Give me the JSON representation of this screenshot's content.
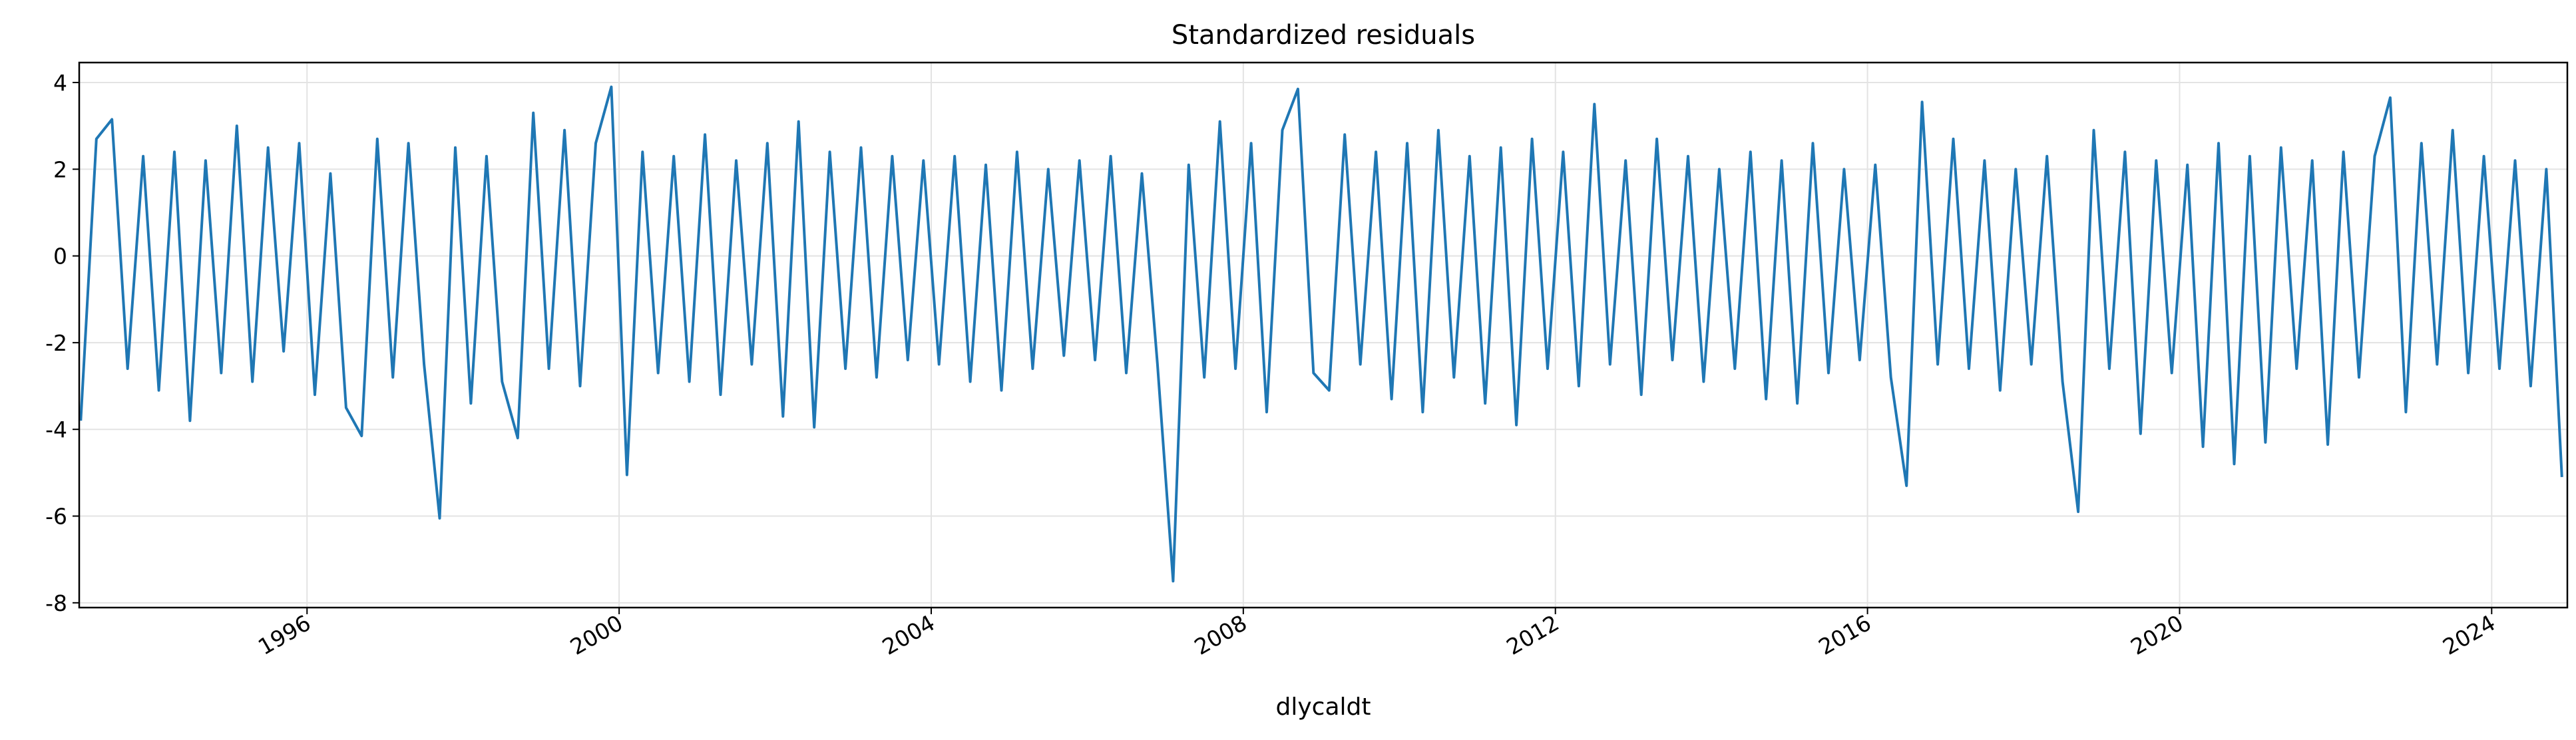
{
  "chart_data": {
    "type": "line",
    "title": "Standardized residuals",
    "xlabel": "dlycaldt",
    "x": [
      1993.1,
      1993.3,
      1993.5,
      1993.7,
      1993.9,
      1994.1,
      1994.3,
      1994.5,
      1994.7,
      1994.9,
      1995.1,
      1995.3,
      1995.5,
      1995.7,
      1995.9,
      1996.1,
      1996.3,
      1996.5,
      1996.7,
      1996.9,
      1997.1,
      1997.3,
      1997.5,
      1997.7,
      1997.9,
      1998.1,
      1998.3,
      1998.5,
      1998.7,
      1998.9,
      1999.1,
      1999.3,
      1999.5,
      1999.7,
      1999.9,
      2000.1,
      2000.3,
      2000.5,
      2000.7,
      2000.9,
      2001.1,
      2001.3,
      2001.5,
      2001.7,
      2001.9,
      2002.1,
      2002.3,
      2002.5,
      2002.7,
      2002.9,
      2003.1,
      2003.3,
      2003.5,
      2003.7,
      2003.9,
      2004.1,
      2004.3,
      2004.5,
      2004.7,
      2004.9,
      2005.1,
      2005.3,
      2005.5,
      2005.7,
      2005.9,
      2006.1,
      2006.3,
      2006.5,
      2006.7,
      2006.9,
      2007.1,
      2007.3,
      2007.5,
      2007.7,
      2007.9,
      2008.1,
      2008.3,
      2008.5,
      2008.7,
      2008.9,
      2009.1,
      2009.3,
      2009.5,
      2009.7,
      2009.9,
      2010.1,
      2010.3,
      2010.5,
      2010.7,
      2010.9,
      2011.1,
      2011.3,
      2011.5,
      2011.7,
      2011.9,
      2012.1,
      2012.3,
      2012.5,
      2012.7,
      2012.9,
      2013.1,
      2013.3,
      2013.5,
      2013.7,
      2013.9,
      2014.1,
      2014.3,
      2014.5,
      2014.7,
      2014.9,
      2015.1,
      2015.3,
      2015.5,
      2015.7,
      2015.9,
      2016.1,
      2016.3,
      2016.5,
      2016.7,
      2016.9,
      2017.1,
      2017.3,
      2017.5,
      2017.7,
      2017.9,
      2018.1,
      2018.3,
      2018.5,
      2018.7,
      2018.9,
      2019.1,
      2019.3,
      2019.5,
      2019.7,
      2019.9,
      2020.1,
      2020.3,
      2020.5,
      2020.7,
      2020.9,
      2021.1,
      2021.3,
      2021.5,
      2021.7,
      2021.9,
      2022.1,
      2022.3,
      2022.5,
      2022.7,
      2022.9,
      2023.1,
      2023.3,
      2023.5,
      2023.7,
      2023.9,
      2024.1,
      2024.3,
      2024.5,
      2024.7,
      2024.9
    ],
    "series": [
      {
        "color": "#1f77b4",
        "values": [
          -3.8,
          2.7,
          3.15,
          -2.6,
          2.3,
          -3.1,
          2.4,
          -3.8,
          2.2,
          -2.7,
          3.0,
          -2.9,
          2.5,
          -2.2,
          2.6,
          -3.2,
          1.9,
          -3.5,
          -4.15,
          2.7,
          -2.8,
          2.6,
          -2.5,
          -6.05,
          2.5,
          -3.4,
          2.3,
          -2.9,
          -4.2,
          3.3,
          -2.6,
          2.9,
          -3.0,
          2.6,
          3.9,
          -5.05,
          2.4,
          -2.7,
          2.3,
          -2.9,
          2.8,
          -3.2,
          2.2,
          -2.5,
          2.6,
          -3.7,
          3.1,
          -3.95,
          2.4,
          -2.6,
          2.5,
          -2.8,
          2.3,
          -2.4,
          2.2,
          -2.5,
          2.3,
          -2.9,
          2.1,
          -3.1,
          2.4,
          -2.6,
          2.0,
          -2.3,
          2.2,
          -2.4,
          2.3,
          -2.7,
          1.9,
          -2.5,
          -7.5,
          2.1,
          -2.8,
          3.1,
          -2.6,
          2.6,
          -3.6,
          2.9,
          3.85,
          -2.7,
          -3.1,
          2.8,
          -2.5,
          2.4,
          -3.3,
          2.6,
          -3.6,
          2.9,
          -2.8,
          2.3,
          -3.4,
          2.5,
          -3.9,
          2.7,
          -2.6,
          2.4,
          -3.0,
          3.5,
          -2.5,
          2.2,
          -3.2,
          2.7,
          -2.4,
          2.3,
          -2.9,
          2.0,
          -2.6,
          2.4,
          -3.3,
          2.2,
          -3.4,
          2.6,
          -2.7,
          2.0,
          -2.4,
          2.1,
          -2.8,
          -5.3,
          3.55,
          -2.5,
          2.7,
          -2.6,
          2.2,
          -3.1,
          2.0,
          -2.5,
          2.3,
          -2.9,
          -5.9,
          2.9,
          -2.6,
          2.4,
          -4.1,
          2.2,
          -2.7,
          2.1,
          -4.4,
          2.6,
          -4.8,
          2.3,
          -4.3,
          2.5,
          -2.6,
          2.2,
          -4.35,
          2.4,
          -2.8,
          2.3,
          3.65,
          -3.6,
          2.6,
          -2.5,
          2.9,
          -2.7,
          2.3,
          -2.6,
          2.2,
          -3.0,
          2.0,
          -5.1
        ]
      }
    ],
    "xlim": [
      1993.08,
      2024.97
    ],
    "xticks": [
      1996,
      2000,
      2004,
      2008,
      2012,
      2016,
      2020,
      2024
    ],
    "ylim": [
      -8.11,
      4.46
    ],
    "yticks": [
      -8,
      -6,
      -4,
      -2,
      0,
      2,
      4
    ],
    "grid": true
  }
}
